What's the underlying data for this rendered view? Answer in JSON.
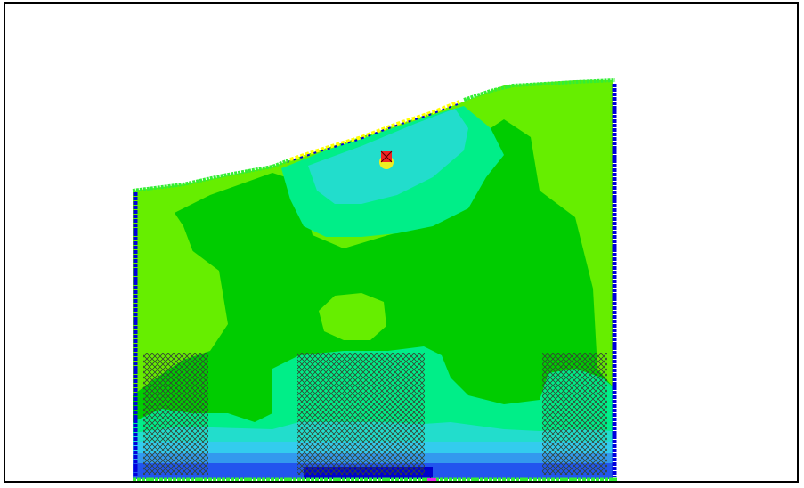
{
  "window": {
    "title": ""
  },
  "colors": {
    "background": "#ffffff",
    "frame": "#000000",
    "lime": "#66ee00",
    "green": "#00cc00",
    "mint": "#00ee88",
    "cyan": "#22ddcc",
    "aqua": "#33ccee",
    "sky": "#3399ee",
    "blue": "#2255ee",
    "navy": "#0000cc",
    "boundary_green": "#33ee33",
    "boundary_blue": "#0000dd",
    "surface_yellow": "#ffff00",
    "source_red": "#ee2222",
    "source_yellow": "#eeee22",
    "hatch": "#334433",
    "marker_magenta": "#ee22ee"
  },
  "legend": []
}
